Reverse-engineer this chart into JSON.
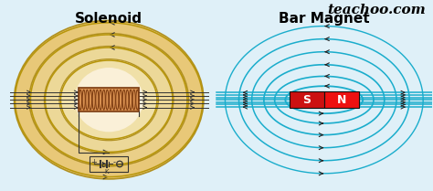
{
  "title_left": "Solenoid",
  "title_right": "Bar Magnet",
  "watermark": "teachoo.com",
  "bg_color": "#dff0f8",
  "field_line_color": "#1aadcc",
  "coil_color": "#c87840",
  "ellipse_fill": "#f0d9a0",
  "ellipse_edge": "#b8960a",
  "inner_fill": "#f5ead0",
  "arrow_color": "#222222",
  "title_fontsize": 11,
  "watermark_fontsize": 11,
  "magnet_s_color": "#cc1111",
  "magnet_n_color": "#dd2222"
}
